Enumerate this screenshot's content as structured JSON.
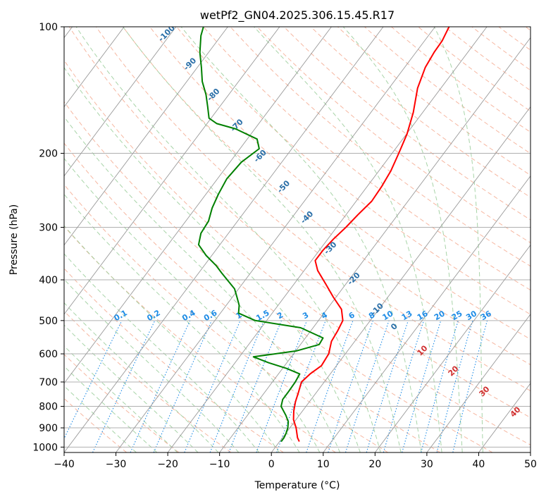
{
  "chart_data": {
    "type": "line",
    "title": "wetPf2_GN04.2025.306.15.45.R17",
    "xlabel": "Temperature (°C)",
    "ylabel": "Pressure (hPa)",
    "xlim": [
      -40,
      50
    ],
    "ylim": [
      1030,
      100
    ],
    "y_scale": "log",
    "grid": true,
    "x_ticks": [
      -40,
      -30,
      -20,
      -10,
      0,
      10,
      20,
      30,
      40,
      50
    ],
    "y_ticks": [
      100,
      200,
      300,
      400,
      500,
      600,
      700,
      800,
      900,
      1000
    ],
    "colors": {
      "temperature": "#ff0000",
      "dewpoint": "#008000",
      "isotherm": "#9a9a9a",
      "dry_adiabat": "#f4a58a",
      "moist_adiabat": "#9fcf9f",
      "mixing_ratio": "#1e8ce6",
      "dry_label": "#2a6fa8",
      "moist_label": "#d03030"
    },
    "series": [
      {
        "key": "temperature",
        "pressure": [
          970,
          950,
          900,
          860,
          820,
          780,
          740,
          700,
          670,
          640,
          600,
          560,
          530,
          500,
          470,
          440,
          410,
          380,
          360,
          340,
          320,
          300,
          280,
          260,
          240,
          220,
          200,
          180,
          160,
          140,
          125,
          115,
          108,
          100
        ],
        "values": [
          3.8,
          2.9,
          1.2,
          -0.5,
          -1.7,
          -2.7,
          -3.5,
          -4.4,
          -3.9,
          -2.9,
          -3.2,
          -4.5,
          -4.8,
          -5.3,
          -7.2,
          -10.5,
          -13.8,
          -17.4,
          -19.3,
          -19.3,
          -18.9,
          -18.2,
          -17.7,
          -17.0,
          -17.2,
          -17.7,
          -18.7,
          -19.9,
          -21.8,
          -24.5,
          -26.0,
          -26.5,
          -26.6,
          -27.3
        ]
      },
      {
        "key": "dewpoint",
        "pressure": [
          970,
          950,
          930,
          900,
          870,
          840,
          800,
          770,
          740,
          700,
          670,
          650,
          630,
          610,
          590,
          570,
          550,
          520,
          500,
          480,
          460,
          440,
          420,
          400,
          385,
          370,
          350,
          330,
          310,
          290,
          270,
          250,
          230,
          210,
          195,
          185,
          175,
          170,
          165,
          155,
          145,
          135,
          125,
          115,
          105,
          100
        ],
        "values": [
          0.3,
          0.3,
          0.1,
          -0.4,
          -1.2,
          -2.6,
          -4.8,
          -5.5,
          -5.5,
          -5.6,
          -5.9,
          -9.2,
          -13.5,
          -17.3,
          -9.8,
          -6.4,
          -6.6,
          -12.4,
          -22.2,
          -26.5,
          -27.5,
          -29.1,
          -30.8,
          -33.5,
          -35.6,
          -37.7,
          -41.1,
          -44.1,
          -45.3,
          -45.6,
          -46.8,
          -47.6,
          -48.2,
          -47.8,
          -46.3,
          -48.1,
          -53.7,
          -58.1,
          -60.4,
          -62.3,
          -64.4,
          -67.0,
          -69.2,
          -71.7,
          -73.9,
          -74.7
        ]
      }
    ],
    "dry_adiabat_labels": [
      "-100",
      "-90",
      "-80",
      "-70",
      "-60",
      "-50",
      "-40",
      "-30",
      "-20",
      "-10",
      "0",
      "10",
      "20",
      "30",
      "40"
    ],
    "mixing_ratio_labels": [
      "0.1",
      "0.2",
      "0.4",
      "0.6",
      "1",
      "1.5",
      "2",
      "3",
      "4",
      "6",
      "8",
      "10",
      "13",
      "16",
      "20",
      "25",
      "30",
      "36"
    ]
  }
}
